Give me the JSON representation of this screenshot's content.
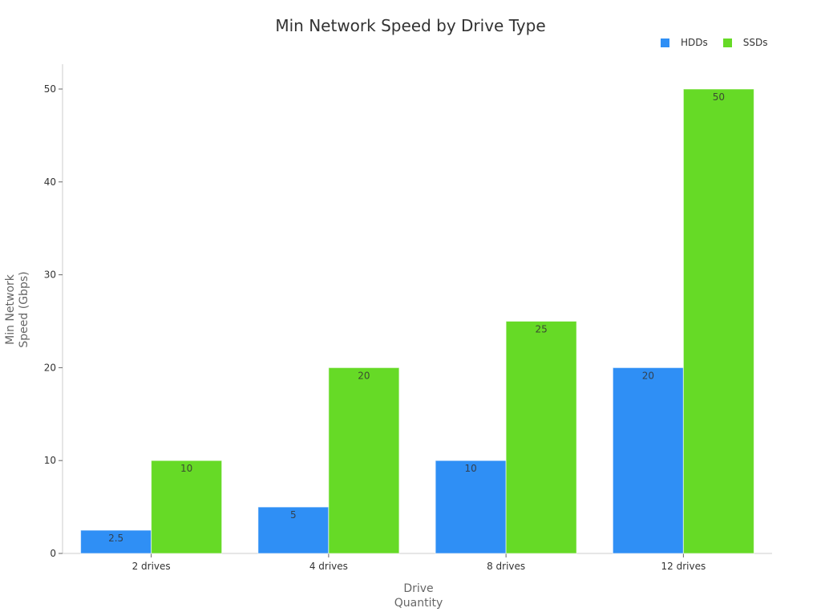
{
  "chart": {
    "title": "Min Network Speed by Drive Type",
    "ylabel_line1": "Min Network",
    "ylabel_line2": "Speed (Gbps)",
    "xlabel_line1": "Drive",
    "xlabel_line2": "Quantity",
    "legend": [
      {
        "label": "HDDs",
        "color": "#2f8ff5"
      },
      {
        "label": "SSDs",
        "color": "#66da26"
      }
    ]
  },
  "chart_data": {
    "type": "bar",
    "title": "Min Network Speed by Drive Type",
    "xlabel": "Drive Quantity",
    "ylabel": "Min Network Speed (Gbps)",
    "categories": [
      "2 drives",
      "4 drives",
      "8 drives",
      "12 drives"
    ],
    "series": [
      {
        "name": "HDDs",
        "color": "#2f8ff5",
        "values": [
          2.5,
          5,
          10,
          20
        ],
        "labels": [
          "2.5",
          "5",
          "10",
          "20"
        ]
      },
      {
        "name": "SSDs",
        "color": "#66da26",
        "values": [
          10,
          20,
          25,
          50
        ],
        "labels": [
          "10",
          "20",
          "25",
          "50"
        ]
      }
    ],
    "yticks": [
      0,
      10,
      20,
      30,
      40,
      50
    ],
    "ylim": [
      0,
      52.5
    ],
    "grid": false,
    "legend_position": "top-right",
    "data_labels": true
  }
}
